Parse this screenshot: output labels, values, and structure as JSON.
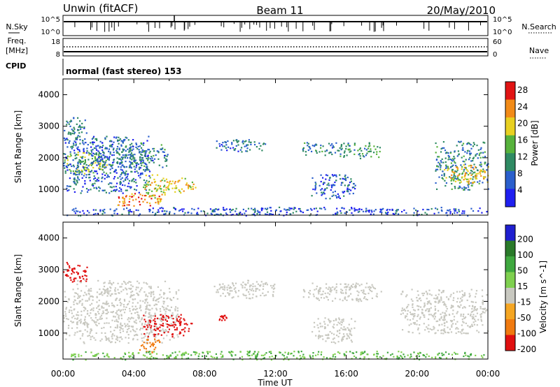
{
  "header": {
    "station": "Unwin (fitACF)",
    "beam": "Beam 11",
    "date": "20/May/2010"
  },
  "status_panels": {
    "nsky_label": "N.Sky",
    "nsearch_label": "N.Search",
    "nsky_ticks": [
      "10^5",
      "10^0"
    ],
    "nsearch_ticks": [
      "10^5",
      "10^0"
    ],
    "freq_label_line1": "Freq.",
    "freq_label_line2": "[MHz]",
    "freq_ticks": [
      "18",
      "8"
    ],
    "nave_label": "Nave",
    "nave_ticks": [
      "60",
      "0"
    ],
    "cpid_label": "CPID",
    "cpid_text": "normal (fast stereo) 153"
  },
  "chart_data": [
    {
      "type": "heatmap",
      "panel": "power",
      "xlabel": "Time UT",
      "ylabel": "Slant Range [km]",
      "x_range": [
        "00:00",
        "24:00"
      ],
      "x_ticks": [
        "00:00",
        "04:00",
        "08:00",
        "12:00",
        "16:00",
        "20:00",
        "00:00"
      ],
      "ylim": [
        180,
        4500
      ],
      "y_ticks": [
        1000,
        2000,
        3000,
        4000
      ],
      "colorbar": {
        "label": "Power [dB]",
        "ticks": [
          4,
          8,
          12,
          16,
          20,
          24,
          28
        ],
        "range": [
          0,
          30
        ],
        "colors": [
          "#1f1ff0",
          "#2a5fcc",
          "#2f8a63",
          "#57b23c",
          "#e8d021",
          "#f28b18",
          "#e11414"
        ]
      },
      "echo_regions": [
        {
          "t_start": 0.0,
          "t_end": 1.3,
          "r_min": 2300,
          "r_max": 3300,
          "value": 8
        },
        {
          "t_start": 0.0,
          "t_end": 2.5,
          "r_min": 1500,
          "r_max": 2200,
          "value": 16
        },
        {
          "t_start": 0.0,
          "t_end": 5.0,
          "r_min": 900,
          "r_max": 2700,
          "value": 7
        },
        {
          "t_start": 1.5,
          "t_end": 6.0,
          "r_min": 1700,
          "r_max": 2500,
          "value": 9
        },
        {
          "t_start": 3.0,
          "t_end": 5.6,
          "r_min": 450,
          "r_max": 900,
          "value": 24
        },
        {
          "t_start": 4.5,
          "t_end": 5.9,
          "r_min": 700,
          "r_max": 1500,
          "value": 18
        },
        {
          "t_start": 5.8,
          "t_end": 7.5,
          "r_min": 900,
          "r_max": 1400,
          "value": 20
        },
        {
          "t_start": 8.5,
          "t_end": 11.5,
          "r_min": 2200,
          "r_max": 2600,
          "value": 8
        },
        {
          "t_start": 13.5,
          "t_end": 16.0,
          "r_min": 2100,
          "r_max": 2500,
          "value": 9
        },
        {
          "t_start": 15.5,
          "t_end": 18.0,
          "r_min": 2000,
          "r_max": 2500,
          "value": 12
        },
        {
          "t_start": 14.0,
          "t_end": 16.5,
          "r_min": 700,
          "r_max": 1500,
          "value": 6
        },
        {
          "t_start": 21.0,
          "t_end": 24.0,
          "r_min": 1000,
          "r_max": 2600,
          "value": 10
        },
        {
          "t_start": 21.5,
          "t_end": 24.0,
          "r_min": 1200,
          "r_max": 1800,
          "value": 20
        },
        {
          "t_start": 0.0,
          "t_end": 24.0,
          "r_min": 180,
          "r_max": 450,
          "value": 6
        }
      ]
    },
    {
      "type": "heatmap",
      "panel": "velocity",
      "xlabel": "Time UT",
      "ylabel": "Slant Range [km]",
      "x_range": [
        "00:00",
        "24:00"
      ],
      "x_ticks": [
        "00:00",
        "04:00",
        "08:00",
        "12:00",
        "16:00",
        "20:00",
        "00:00"
      ],
      "ylim": [
        180,
        4500
      ],
      "y_ticks": [
        1000,
        2000,
        3000,
        4000
      ],
      "colorbar": {
        "label": "Velocity [m s^-1]",
        "tick_labels": [
          "200",
          "100",
          "50",
          "15",
          "-15",
          "-50",
          "-100",
          "-200"
        ],
        "colors": [
          "#1f1fd0",
          "#2a7a2a",
          "#3fa83f",
          "#7fd04f",
          "#c8c8c0",
          "#f5a623",
          "#f07a10",
          "#e01010"
        ]
      },
      "echo_regions": [
        {
          "t_start": 0.0,
          "t_end": 1.4,
          "r_min": 2600,
          "r_max": 3300,
          "value": -200
        },
        {
          "t_start": 0.0,
          "t_end": 6.5,
          "r_min": 700,
          "r_max": 2700,
          "value": 0
        },
        {
          "t_start": 4.5,
          "t_end": 7.3,
          "r_min": 900,
          "r_max": 1600,
          "value": -200
        },
        {
          "t_start": 4.3,
          "t_end": 5.5,
          "r_min": 400,
          "r_max": 900,
          "value": -50
        },
        {
          "t_start": 8.8,
          "t_end": 9.2,
          "r_min": 1400,
          "r_max": 1600,
          "value": -200
        },
        {
          "t_start": 8.5,
          "t_end": 12.0,
          "r_min": 2100,
          "r_max": 2700,
          "value": 0
        },
        {
          "t_start": 13.5,
          "t_end": 18.0,
          "r_min": 2000,
          "r_max": 2600,
          "value": 0
        },
        {
          "t_start": 14.0,
          "t_end": 16.5,
          "r_min": 700,
          "r_max": 1500,
          "value": 0
        },
        {
          "t_start": 19.0,
          "t_end": 24.0,
          "r_min": 1000,
          "r_max": 2400,
          "value": 0
        },
        {
          "t_start": 0.0,
          "t_end": 24.0,
          "r_min": 180,
          "r_max": 450,
          "value": 30
        }
      ]
    }
  ]
}
